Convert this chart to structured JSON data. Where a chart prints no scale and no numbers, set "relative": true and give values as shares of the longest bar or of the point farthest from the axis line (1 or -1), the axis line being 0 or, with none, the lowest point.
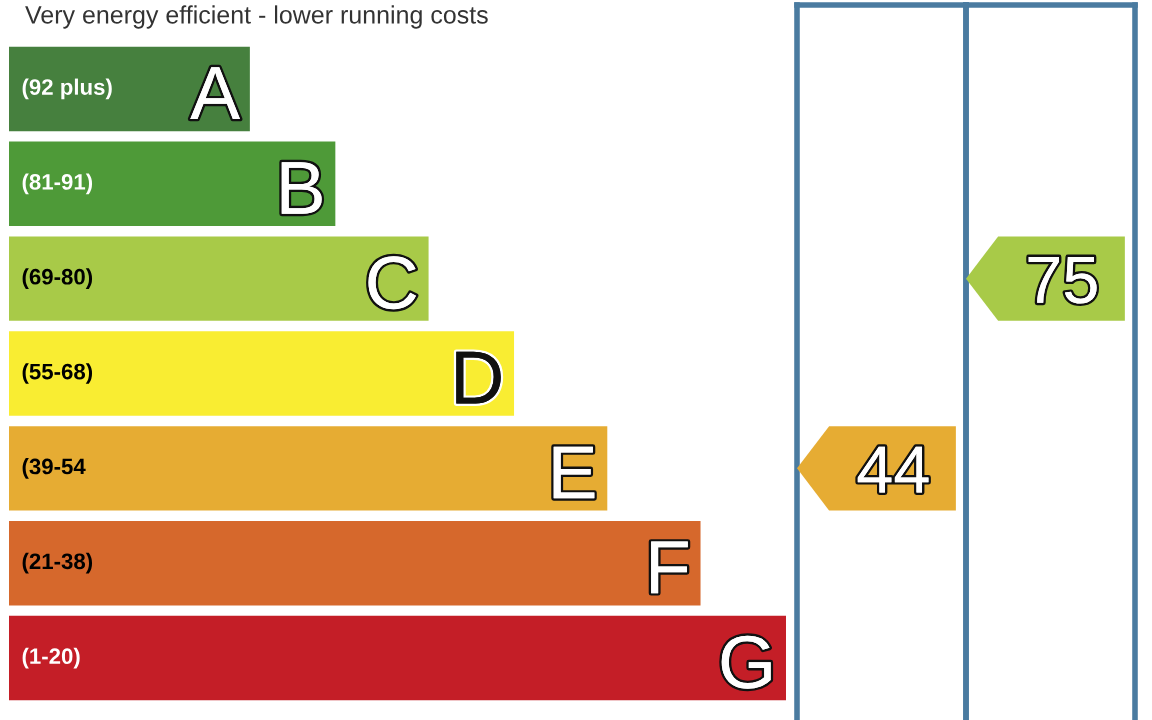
{
  "chart_data": [
    {
      "type": "bar",
      "orientation": "horizontal",
      "relative": true,
      "title": "Very energy efficient - lower running costs",
      "categories": [
        "A",
        "B",
        "C",
        "D",
        "E",
        "F",
        "G"
      ],
      "values": [
        0.31,
        0.42,
        0.54,
        0.65,
        0.77,
        0.89,
        1
      ],
      "colors": [
        "#46803e",
        "#4e9a38",
        "#a8ca48",
        "#f9ed32",
        "#e6ac33",
        "#d6682c",
        "#c41e27"
      ],
      "annotations": [
        "(92 plus)",
        "(81-91)",
        "(69-80)",
        "(55-68)",
        "(39-54",
        "(21-38)",
        "(1-20)"
      ]
    },
    {
      "type": "other",
      "categories": [
        null
      ],
      "colors": [
        "#e6ac33"
      ],
      "annotations": [
        {
          "text": "44",
          "y": "E"
        }
      ]
    },
    {
      "type": "other",
      "categories": [
        null
      ],
      "colors": [
        "#a8ca48"
      ],
      "annotations": [
        {
          "text": "75",
          "y": "C"
        }
      ]
    }
  ]
}
